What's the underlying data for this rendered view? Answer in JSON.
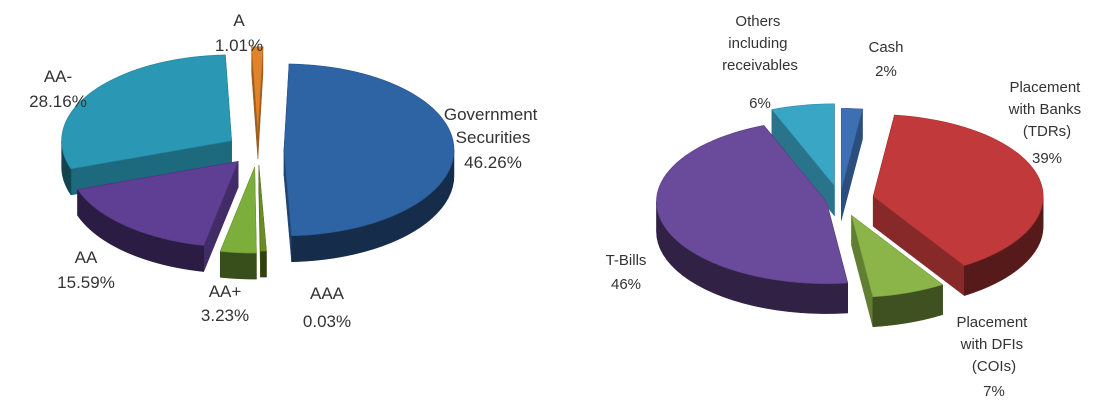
{
  "chart_data": [
    {
      "type": "pie",
      "title": "",
      "slices": [
        {
          "label": "Government Securities",
          "pct_text": "46.26%",
          "value": 46.26,
          "color": "#2e63a4"
        },
        {
          "label": "AAA",
          "pct_text": "0.03%",
          "value": 0.03,
          "color": "#6b8e23"
        },
        {
          "label": "AA+",
          "pct_text": "3.23%",
          "value": 3.23,
          "color": "#7cae3b"
        },
        {
          "label": "AA",
          "pct_text": "15.59%",
          "value": 15.59,
          "color": "#5e3f93"
        },
        {
          "label": "AA-",
          "pct_text": "28.16%",
          "value": 28.16,
          "color": "#2a97b4"
        },
        {
          "label": "A",
          "pct_text": "1.01%",
          "value": 1.01,
          "color": "#e0832a"
        }
      ]
    },
    {
      "type": "pie",
      "title": "",
      "slices": [
        {
          "label": "Cash",
          "pct_text": "2%",
          "value": 2,
          "color": "#3d6fb3"
        },
        {
          "label": "Placement with Banks (TDRs)",
          "pct_text": "39%",
          "value": 39,
          "color": "#c1393a"
        },
        {
          "label": "Placement with DFIs (COIs)",
          "pct_text": "7%",
          "value": 7,
          "color": "#8bb548"
        },
        {
          "label": "T-Bills",
          "pct_text": "46%",
          "value": 46,
          "color": "#6a4a9a"
        },
        {
          "label": "Others including receivables",
          "pct_text": "6%",
          "value": 6,
          "color": "#3aa6c6"
        }
      ]
    }
  ]
}
